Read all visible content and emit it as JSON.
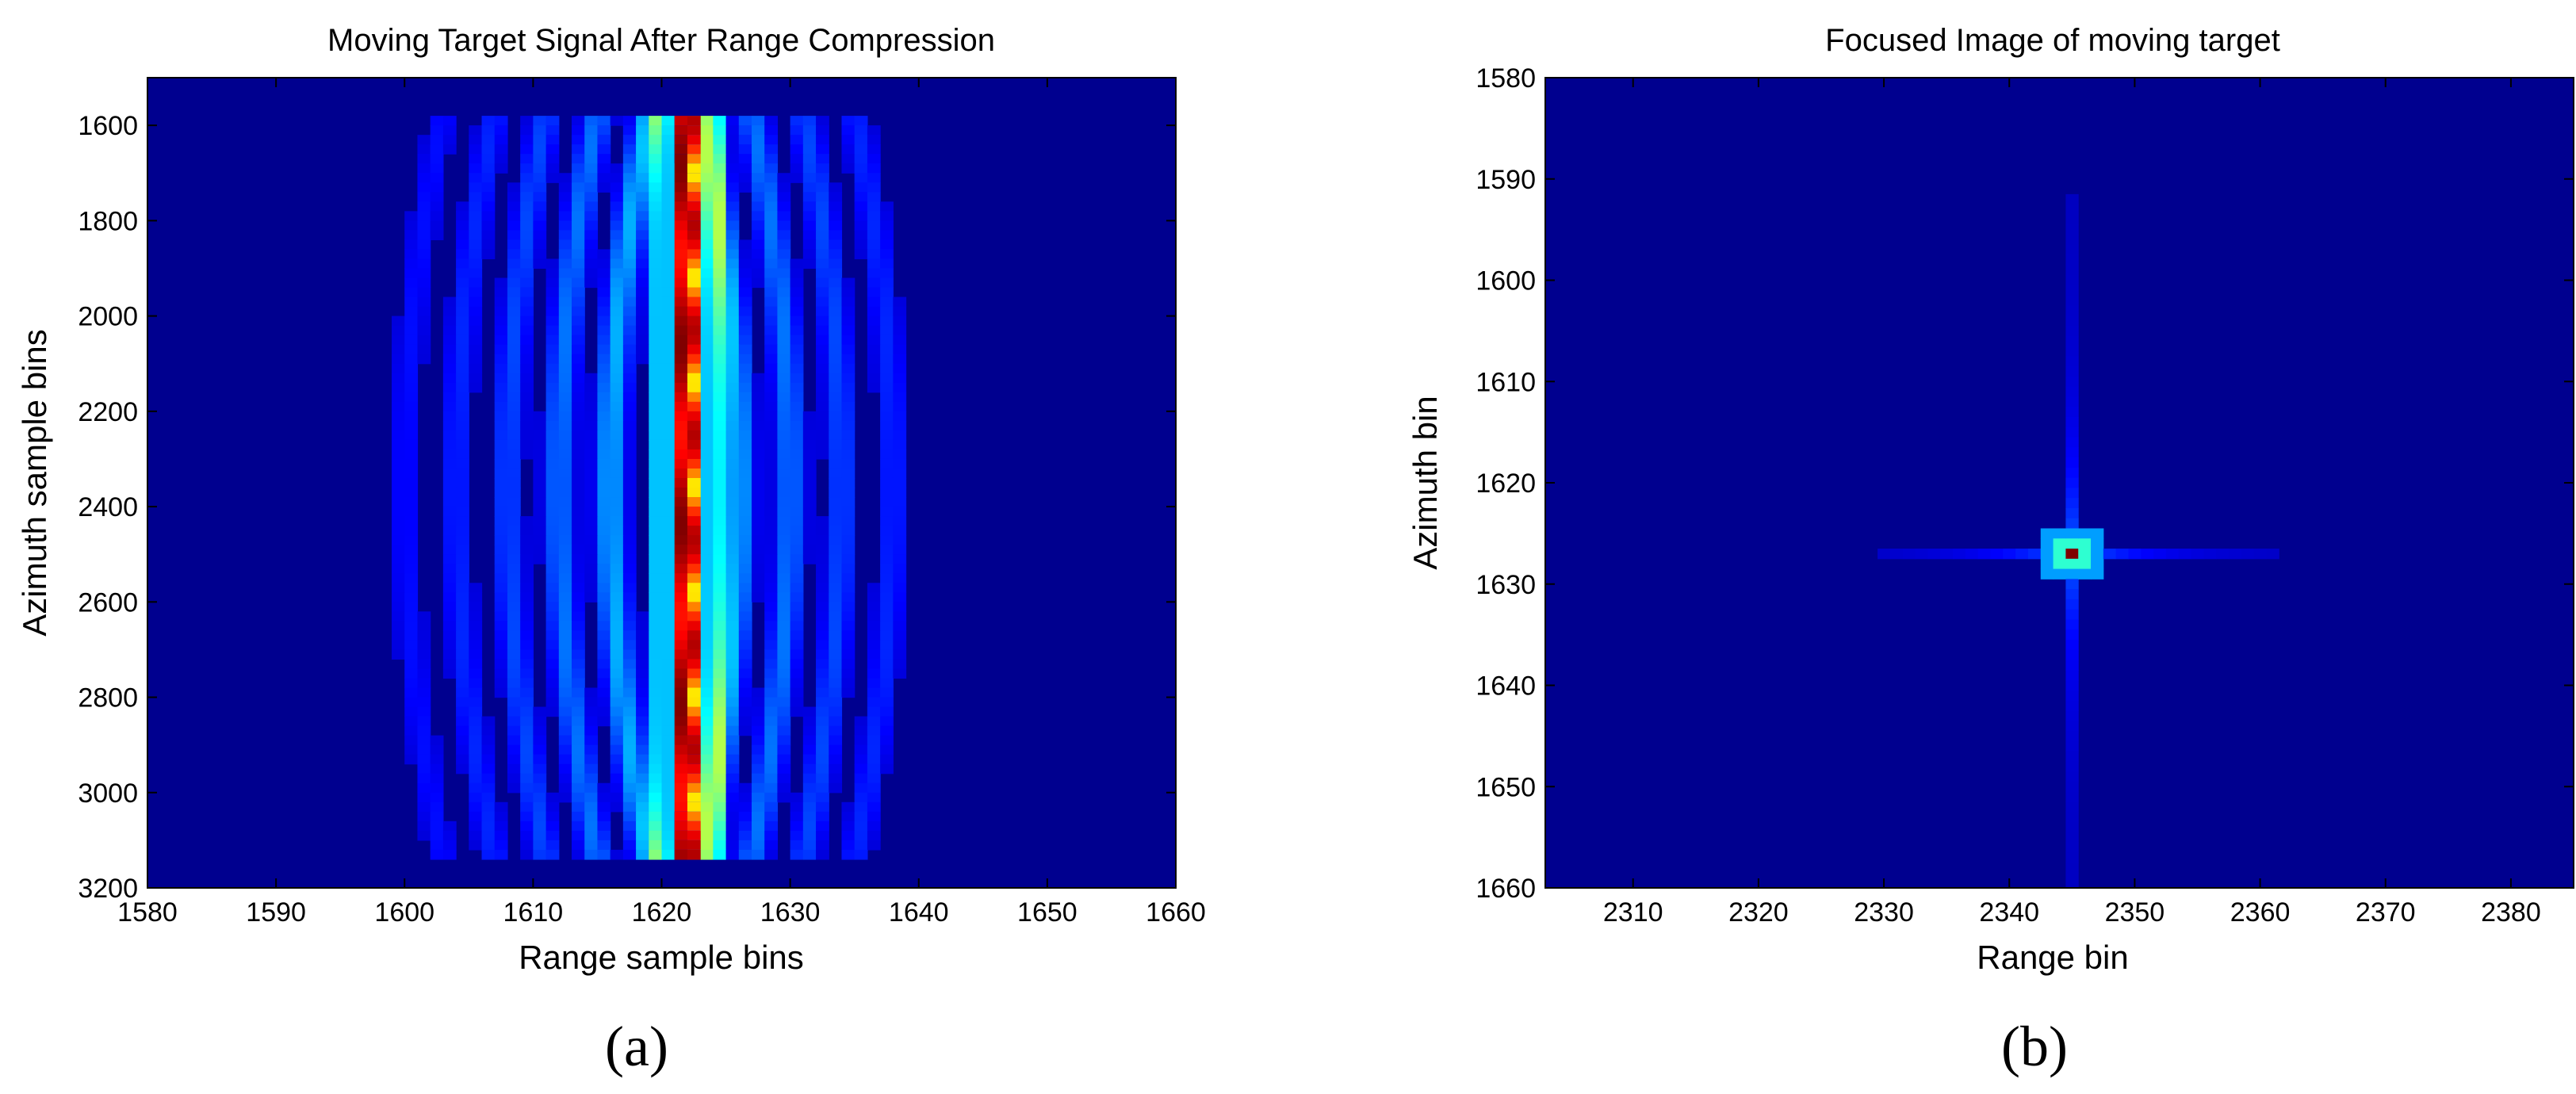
{
  "chart_data": [
    {
      "type": "heatmap",
      "title": "Moving Target Signal  After Range Compression",
      "xlabel": "Range sample bins",
      "ylabel": "Azimuth sample bins",
      "xlim": [
        1580,
        1660
      ],
      "ylim": [
        3200,
        1500
      ],
      "y_reversed": true,
      "xticks": [
        1580,
        1590,
        1600,
        1610,
        1620,
        1630,
        1640,
        1650,
        1660
      ],
      "yticks": [
        1600,
        1800,
        2000,
        2200,
        2400,
        2600,
        2800,
        3000,
        3200
      ],
      "colormap": "jet",
      "data_extent": {
        "x": [
          1580,
          1660
        ],
        "y": [
          1580,
          3140
        ]
      },
      "features": {
        "main_track_range_bin": 1621,
        "side_track_range_bin": 1623,
        "arc_range_bins_at_center": [
          1600,
          1604,
          1608,
          1612,
          1616,
          1626,
          1630,
          1634,
          1638
        ],
        "arc_curvature_bins": 3
      },
      "panel_label": "(a)"
    },
    {
      "type": "heatmap",
      "title": "Focused Image of moving target",
      "xlabel": "Range bin",
      "ylabel": "Azimuth bin",
      "xlim": [
        2303,
        2385
      ],
      "ylim": [
        1660,
        1580
      ],
      "y_reversed": true,
      "xticks": [
        2310,
        2320,
        2330,
        2340,
        2350,
        2360,
        2370,
        2380
      ],
      "yticks": [
        1580,
        1590,
        1600,
        1610,
        1620,
        1630,
        1640,
        1650,
        1660
      ],
      "colormap": "jet",
      "peak": {
        "range_bin": 2345,
        "azimuth_bin": 1627,
        "value": 1.0
      },
      "features": {
        "range_sidelobe_extent": [
          2330,
          2361
        ],
        "azimuth_sidelobe_extent": [
          1592,
          1660
        ]
      },
      "panel_label": "(b)"
    }
  ],
  "colors": {
    "background": "#00008f",
    "peak": "#800000",
    "axis": "#000000"
  }
}
